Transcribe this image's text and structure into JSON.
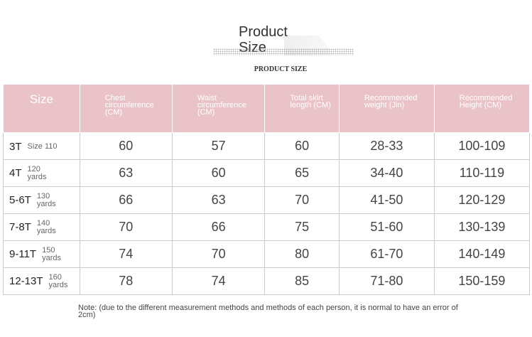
{
  "header": {
    "title": "Product Size",
    "subtitle": "PRODUCT SIZE"
  },
  "table": {
    "columns": [
      "Size",
      "Chest circumference (CM)",
      "Waist circumference (CM)",
      "Total skirt length (CM)",
      "Recommended weight (Jin)",
      "Recommended Height (CM)"
    ],
    "rows": [
      {
        "label": "3T",
        "sub": [
          "Size 110"
        ],
        "cells": [
          "60",
          "57",
          "60",
          "28-33",
          "100-109"
        ]
      },
      {
        "label": "4T",
        "sub": [
          "120",
          "yards"
        ],
        "cells": [
          "63",
          "60",
          "65",
          "34-40",
          "110-119"
        ]
      },
      {
        "label": "5-6T",
        "sub": [
          "130",
          "yards"
        ],
        "cells": [
          "66",
          "63",
          "70",
          "41-50",
          "120-129"
        ]
      },
      {
        "label": "7-8T",
        "sub": [
          "140",
          "yards"
        ],
        "cells": [
          "70",
          "66",
          "75",
          "51-60",
          "130-139"
        ]
      },
      {
        "label": "9-11T",
        "sub": [
          "150",
          "yards"
        ],
        "cells": [
          "74",
          "70",
          "80",
          "61-70",
          "140-149"
        ]
      },
      {
        "label": "12-13T",
        "sub": [
          "160",
          "yards"
        ],
        "cells": [
          "78",
          "74",
          "85",
          "71-80",
          "150-159"
        ]
      }
    ]
  },
  "note": "Note: (due to the different measurement methods and methods of each person, it is normal to have an error of 2cm)"
}
